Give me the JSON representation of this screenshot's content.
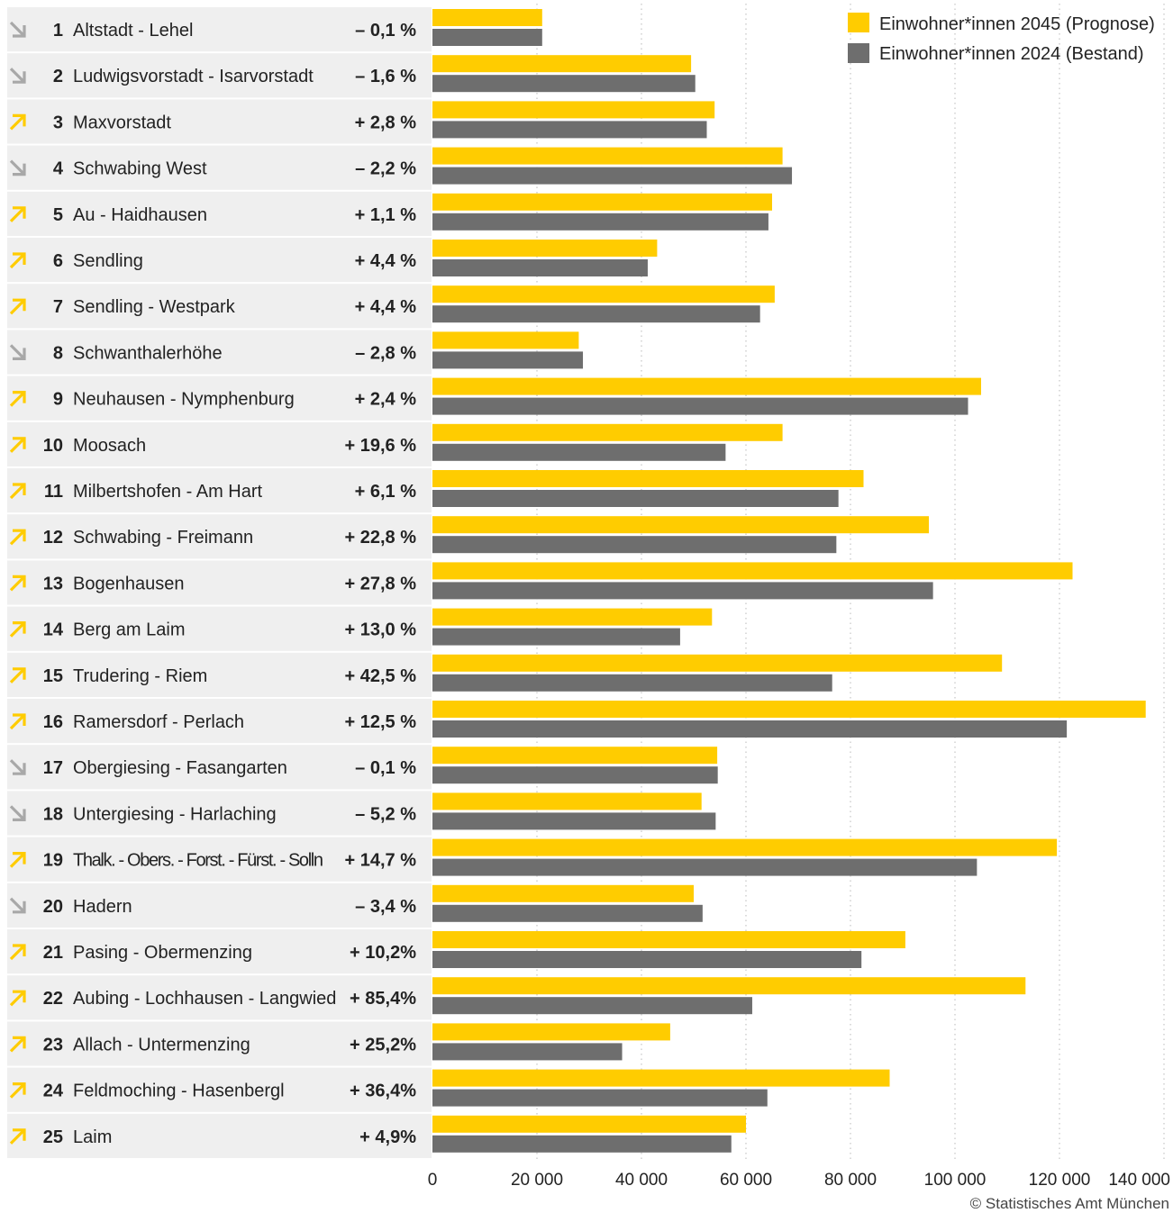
{
  "chart_data": {
    "type": "bar",
    "orientation": "horizontal",
    "title": "",
    "xlabel": "",
    "ylabel": "",
    "xlim": [
      0,
      140000
    ],
    "x_ticks": [
      0,
      20000,
      40000,
      60000,
      80000,
      100000,
      120000,
      140000
    ],
    "x_tick_labels": [
      "0",
      "20 000",
      "40 000",
      "60 000",
      "80 000",
      "100 000",
      "120 000",
      "140 000"
    ],
    "grid": "vertical dotted",
    "legend_position": "top-right",
    "series": [
      {
        "name": "Einwohner*innen 2045 (Prognose)",
        "color": "#ffcc00",
        "values": [
          21000,
          49500,
          54000,
          67000,
          65000,
          43000,
          65500,
          28000,
          105000,
          67000,
          82500,
          95000,
          122500,
          53500,
          109000,
          136500,
          54500,
          51500,
          119500,
          50000,
          90500,
          113500,
          45500,
          87500,
          60000
        ]
      },
      {
        "name": "Einwohner*innen 2024 (Bestand)",
        "color": "#6e6e6e",
        "values": [
          21000,
          50300,
          52500,
          68800,
          64300,
          41200,
          62700,
          28800,
          102500,
          56100,
          77700,
          77300,
          95800,
          47400,
          76500,
          121400,
          54600,
          54200,
          104200,
          51700,
          82100,
          61200,
          36300,
          64100,
          57200
        ]
      }
    ],
    "rows": [
      {
        "nr": "1",
        "name": "Altstadt - Lehel",
        "change": "– 0,1 %",
        "trend": "down"
      },
      {
        "nr": "2",
        "name": "Ludwigsvorstadt - Isarvorstadt",
        "change": "– 1,6 %",
        "trend": "down"
      },
      {
        "nr": "3",
        "name": "Maxvorstadt",
        "change": "+ 2,8 %",
        "trend": "up"
      },
      {
        "nr": "4",
        "name": "Schwabing West",
        "change": "– 2,2 %",
        "trend": "down"
      },
      {
        "nr": "5",
        "name": "Au - Haidhausen",
        "change": "+ 1,1 %",
        "trend": "up"
      },
      {
        "nr": "6",
        "name": "Sendling",
        "change": "+ 4,4 %",
        "trend": "up"
      },
      {
        "nr": "7",
        "name": "Sendling - Westpark",
        "change": "+ 4,4 %",
        "trend": "up"
      },
      {
        "nr": "8",
        "name": "Schwanthalerhöhe",
        "change": "– 2,8 %",
        "trend": "down"
      },
      {
        "nr": "9",
        "name": "Neuhausen - Nymphenburg",
        "change": "+ 2,4 %",
        "trend": "up"
      },
      {
        "nr": "10",
        "name": "Moosach",
        "change": "+ 19,6 %",
        "trend": "up"
      },
      {
        "nr": "11",
        "name": "Milbertshofen - Am Hart",
        "change": "+ 6,1 %",
        "trend": "up"
      },
      {
        "nr": "12",
        "name": "Schwabing - Freimann",
        "change": "+ 22,8 %",
        "trend": "up"
      },
      {
        "nr": "13",
        "name": "Bogenhausen",
        "change": "+ 27,8 %",
        "trend": "up"
      },
      {
        "nr": "14",
        "name": "Berg am Laim",
        "change": "+ 13,0 %",
        "trend": "up"
      },
      {
        "nr": "15",
        "name": "Trudering - Riem",
        "change": "+ 42,5 %",
        "trend": "up"
      },
      {
        "nr": "16",
        "name": "Ramersdorf - Perlach",
        "change": "+ 12,5 %",
        "trend": "up"
      },
      {
        "nr": "17",
        "name": "Obergiesing - Fasangarten",
        "change": "– 0,1 %",
        "trend": "down"
      },
      {
        "nr": "18",
        "name": "Untergiesing - Harlaching",
        "change": "– 5,2 %",
        "trend": "down"
      },
      {
        "nr": "19",
        "name": "Thalk. - Obers. - Forst. - Fürst. - Solln",
        "change": "+ 14,7 %",
        "trend": "up"
      },
      {
        "nr": "20",
        "name": "Hadern",
        "change": "– 3,4 %",
        "trend": "down"
      },
      {
        "nr": "21",
        "name": "Pasing - Obermenzing",
        "change": "+ 10,2%",
        "trend": "up"
      },
      {
        "nr": "22",
        "name": "Aubing - Lochhausen - Langwied",
        "change": "+ 85,4%",
        "trend": "up"
      },
      {
        "nr": "23",
        "name": "Allach - Untermenzing",
        "change": "+ 25,2%",
        "trend": "up"
      },
      {
        "nr": "24",
        "name": "Feldmoching - Hasenbergl",
        "change": "+ 36,4%",
        "trend": "up"
      },
      {
        "nr": "25",
        "name": "Laim",
        "change": "+ 4,9%",
        "trend": "up"
      }
    ],
    "trend_colors": {
      "up": "#ffcc00",
      "down": "#a8a8a8"
    },
    "row_background": "#efefef",
    "source": "© Statistisches Amt München"
  }
}
